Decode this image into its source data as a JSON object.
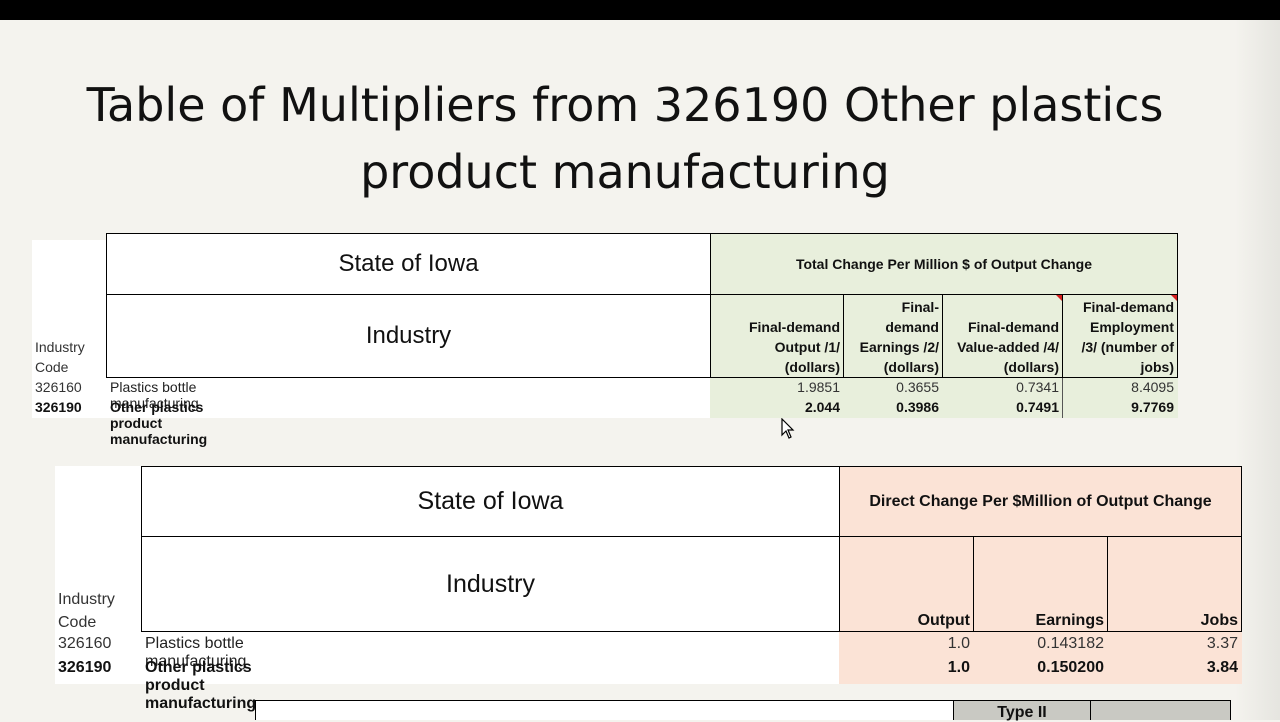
{
  "slide": {
    "title_line1": "Table of Multipliers from 326190 Other plastics",
    "title_line2": "product manufacturing"
  },
  "table1": {
    "region": "State of Iowa",
    "industry_header": "Industry",
    "code_header_line1": "Industry",
    "code_header_line2": "Code",
    "group_header": "Total Change Per Million $ of Output Change",
    "columns": [
      {
        "lines": [
          "Final-demand",
          "Output /1/",
          "(dollars)"
        ]
      },
      {
        "lines": [
          "Final-",
          "demand",
          "Earnings /2/",
          "(dollars)"
        ]
      },
      {
        "lines": [
          "Final-demand",
          "Value-added /4/",
          "(dollars)"
        ]
      },
      {
        "lines": [
          "Final-demand",
          "Employment",
          "/3/ (number of",
          "jobs)"
        ]
      }
    ],
    "rows": [
      {
        "code": "326160",
        "industry": "Plastics bottle manufacturing",
        "values": [
          "1.9851",
          "0.3655",
          "0.7341",
          "8.4095"
        ],
        "bold": false
      },
      {
        "code": "326190",
        "industry": "Other plastics product manufacturing",
        "values": [
          "2.044",
          "0.3986",
          "0.7491",
          "9.7769"
        ],
        "bold": true
      }
    ],
    "accent_color": "#e8efdc"
  },
  "table2": {
    "region": "State of Iowa",
    "industry_header": "Industry",
    "code_header_line1": "Industry",
    "code_header_line2": "Code",
    "group_header": "Direct Change Per $Million of Output Change",
    "columns": [
      "Output",
      "Earnings",
      "Jobs"
    ],
    "rows": [
      {
        "code": "326160",
        "industry": "Plastics bottle manufacturing",
        "values": [
          "1.0",
          "0.143182",
          "3.37"
        ],
        "bold": false
      },
      {
        "code": "326190",
        "industry": "Other plastics product manufacturing",
        "values": [
          "1.0",
          "0.150200",
          "3.84"
        ],
        "bold": true
      }
    ],
    "accent_color": "#fbe3d6"
  },
  "table3": {
    "partial_header": "Type II",
    "accent_color": "#c9c9c3"
  },
  "icons": {
    "cursor": "mouse-pointer-icon"
  }
}
